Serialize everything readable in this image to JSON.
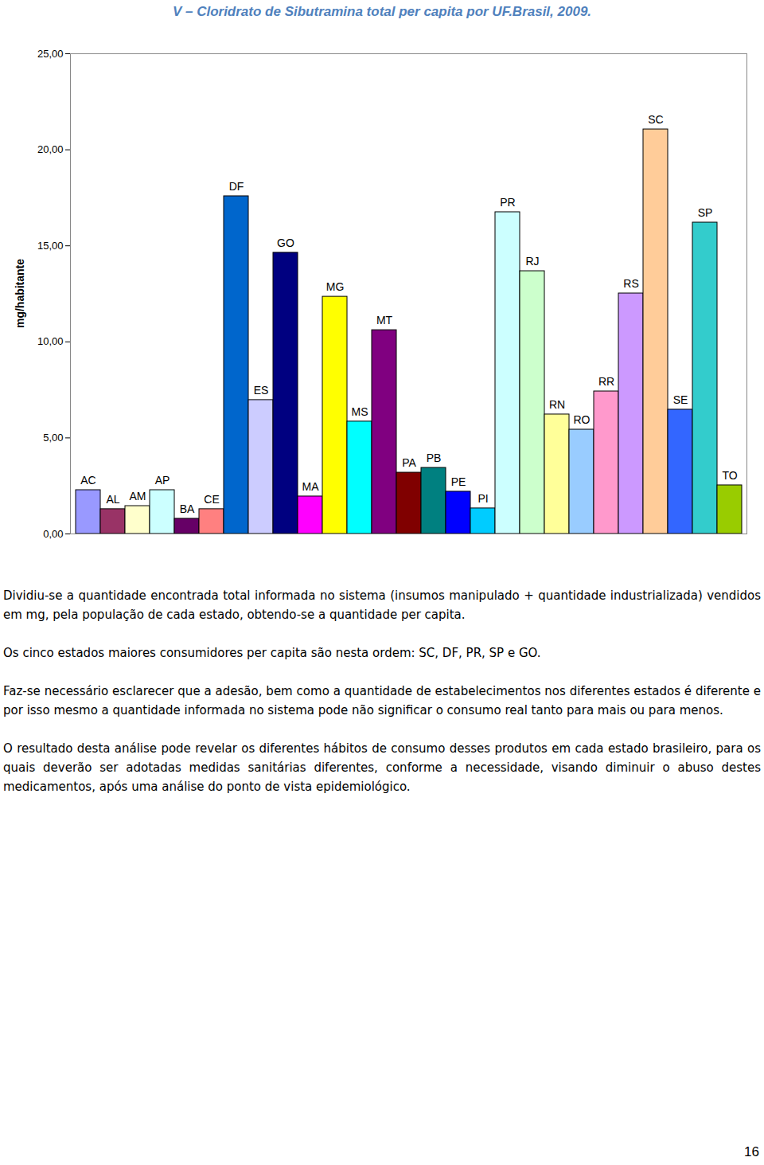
{
  "chart_data": {
    "type": "bar",
    "title": "V – Cloridrato de Sibutramina total per capita por UF.Brasil, 2009.",
    "y_label": "mg/habitante",
    "categories": [
      "AC",
      "AL",
      "AM",
      "AP",
      "BA",
      "CE",
      "DF",
      "ES",
      "GO",
      "MA",
      "MG",
      "MS",
      "MT",
      "PA",
      "PB",
      "PE",
      "PI",
      "PR",
      "RJ",
      "RN",
      "RO",
      "RR",
      "RS",
      "SC",
      "SE",
      "SP",
      "TO"
    ],
    "values": [
      2.28,
      1.29,
      1.45,
      2.28,
      0.79,
      1.29,
      17.58,
      6.97,
      14.64,
      1.95,
      12.35,
      5.85,
      10.61,
      3.19,
      3.44,
      2.2,
      1.33,
      16.75,
      13.68,
      6.22,
      5.43,
      7.42,
      12.52,
      21.06,
      6.47,
      16.21,
      2.53
    ],
    "colors": [
      "#9999ff",
      "#993366",
      "#ffffcc",
      "#ccffff",
      "#660066",
      "#ff8080",
      "#0066cc",
      "#ccccff",
      "#000080",
      "#ff00ff",
      "#ffff00",
      "#00ffff",
      "#800080",
      "#800000",
      "#008080",
      "#0000ff",
      "#00ccff",
      "#ccffff",
      "#ccffcc",
      "#ffff99",
      "#99ccff",
      "#ff99cc",
      "#cc99ff",
      "#ffcc99",
      "#3366ff",
      "#33cccc",
      "#99cc00"
    ],
    "ylim": [
      0,
      25
    ],
    "yticks": [
      {
        "value": 0,
        "label": "0,00"
      },
      {
        "value": 5,
        "label": "5,00"
      },
      {
        "value": 10,
        "label": "10,00"
      },
      {
        "value": 15,
        "label": "15,00"
      },
      {
        "value": 20,
        "label": "20,00"
      },
      {
        "value": 25,
        "label": "25,00"
      }
    ],
    "grid": false,
    "tick_labels": "y",
    "annotations": [
      "Dividiu-se a quantidade encontrada total informada no sistema (insumos manipulado + quantidade industrializada) vendidos em mg, pela população de cada estado, obtendo-se a quantidade per capita.",
      "Os cinco estados maiores consumidores per capita são nesta ordem: SC, DF, PR, SP e GO.",
      "Faz-se necessário esclarecer que a adesão, bem como a quantidade de estabelecimentos nos diferentes estados é diferente e por isso mesmo a quantidade informada no sistema pode não significar o consumo real tanto para mais ou para menos.",
      "O resultado desta análise pode revelar os diferentes hábitos de consumo desses produtos em cada estado brasileiro, para os quais deverão ser adotadas medidas sanitárias diferentes, conforme a necessidade, visando diminuir o abuso destes medicamentos, após uma análise do ponto de vista epidemiológico.",
      "16"
    ]
  }
}
